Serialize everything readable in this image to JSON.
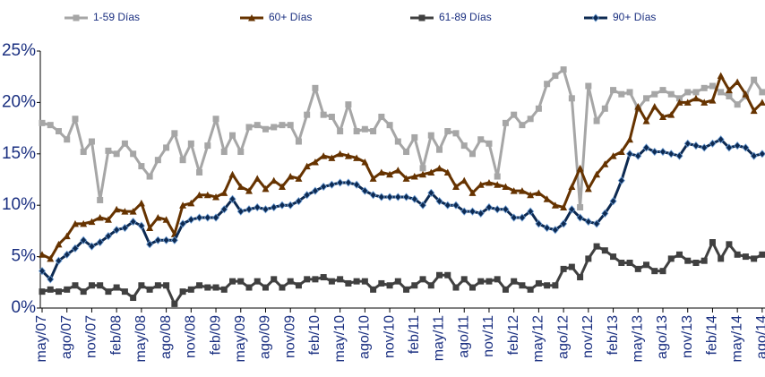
{
  "chart_data": {
    "type": "line",
    "categories": [
      "may/07",
      null,
      null,
      "ago/07",
      null,
      null,
      "nov/07",
      null,
      null,
      "feb/08",
      null,
      null,
      "may/08",
      null,
      null,
      "ago/08",
      null,
      null,
      "nov/08",
      null,
      null,
      "feb/09",
      null,
      null,
      "may/09",
      null,
      null,
      "ago/09",
      null,
      null,
      "nov/09",
      null,
      null,
      "feb/10",
      null,
      null,
      "may/10",
      null,
      null,
      "ago/10",
      null,
      null,
      "nov/10",
      null,
      null,
      "feb/11",
      null,
      null,
      "may/11",
      null,
      null,
      "ago/11",
      null,
      null,
      "nov/11",
      null,
      null,
      "feb/12",
      null,
      null,
      "may/12",
      null,
      null,
      "ago/12",
      null,
      null,
      "nov/12",
      null,
      null,
      "feb/13",
      null,
      null,
      "may/13",
      null,
      null,
      "ago/13",
      null,
      null,
      "nov/13",
      null,
      null,
      "feb/14",
      null,
      null,
      "may/14",
      null,
      null,
      "ago/14"
    ],
    "series": [
      {
        "name": "1-59 Días",
        "color": "#a6a6a6",
        "marker": "square",
        "values": [
          18,
          17.8,
          17.2,
          16.4,
          18.4,
          15.2,
          16.2,
          10.5,
          15.3,
          15,
          16,
          15,
          13.8,
          12.8,
          14.4,
          15.6,
          17,
          14.4,
          16,
          13.2,
          15.8,
          18.4,
          15.2,
          16.8,
          15.2,
          17.6,
          17.8,
          17.4,
          17.6,
          17.8,
          17.8,
          16.2,
          18.8,
          21.4,
          18.8,
          18.6,
          17.2,
          19.8,
          17.2,
          17.4,
          17.2,
          18.6,
          17.8,
          16.2,
          15.2,
          16.6,
          13.6,
          16.8,
          15.4,
          17.2,
          17,
          15.8,
          15,
          16.4,
          16,
          12.8,
          18,
          18.8,
          17.8,
          18.4,
          19.4,
          21.8,
          22.6,
          23.2,
          20.4,
          9.8,
          21.6,
          18.2,
          19.4,
          21.2,
          20.8,
          21,
          19.4,
          20.4,
          20.8,
          21.2,
          20.8,
          20.4,
          21,
          21,
          21.4,
          21.6,
          21,
          20.6,
          19.8,
          20.6,
          22.2,
          21
        ]
      },
      {
        "name": "60+ Días",
        "color": "#663300",
        "marker": "triangle",
        "values": [
          5.2,
          4.8,
          6.2,
          7,
          8.2,
          8.2,
          8.4,
          8.8,
          8.6,
          9.6,
          9.4,
          9.4,
          10.2,
          7.8,
          8.8,
          8.6,
          7.2,
          10,
          10.2,
          11,
          11,
          10.8,
          11.2,
          13,
          11.8,
          11.4,
          12.6,
          11.6,
          12.4,
          11.8,
          12.8,
          12.6,
          13.8,
          14.2,
          14.8,
          14.6,
          15,
          14.8,
          14.6,
          14.2,
          12.6,
          13.2,
          13,
          13.4,
          12.6,
          12.8,
          13,
          13.2,
          13.6,
          13.2,
          11.8,
          12.4,
          11.2,
          12,
          12.2,
          12,
          11.8,
          11.4,
          11.4,
          11,
          11.2,
          10.6,
          10,
          9.8,
          11.8,
          13.6,
          11.6,
          13,
          14,
          14.8,
          15.2,
          16.4,
          19.6,
          18.2,
          19.6,
          18.6,
          18.8,
          20,
          20,
          20.4,
          20,
          20.2,
          22.6,
          21.2,
          22,
          20.8,
          19.2,
          20
        ]
      },
      {
        "name": "61-89 Días",
        "color": "#404040",
        "marker": "square",
        "values": [
          1.6,
          1.8,
          1.6,
          1.8,
          2.2,
          1.6,
          2.2,
          2.2,
          1.6,
          2,
          1.6,
          1,
          2.2,
          1.8,
          2.2,
          2.2,
          0.4,
          1.6,
          1.8,
          2.2,
          2,
          2,
          1.8,
          2.6,
          2.6,
          2,
          2.6,
          2,
          2.8,
          2,
          2.6,
          2.2,
          2.8,
          2.8,
          3,
          2.6,
          2.8,
          2.4,
          2.6,
          2.6,
          1.8,
          2.4,
          2.2,
          2.6,
          1.8,
          2.2,
          2.8,
          2.2,
          3.2,
          3.2,
          2,
          2.8,
          2,
          2.6,
          2.6,
          2.8,
          1.8,
          2.6,
          2.2,
          1.8,
          2.4,
          2.2,
          2.2,
          3.8,
          4,
          3,
          4.8,
          6,
          5.6,
          5,
          4.4,
          4.4,
          3.8,
          4.2,
          3.6,
          3.6,
          4.8,
          5.2,
          4.6,
          4.4,
          4.6,
          6.4,
          4.8,
          6.2,
          5.2,
          5,
          4.8,
          5.2
        ]
      },
      {
        "name": "90+ Días",
        "color": "#0d2a52",
        "marker": "diamond",
        "values": [
          3.6,
          2.8,
          4.6,
          5.2,
          5.8,
          6.6,
          6,
          6.4,
          7,
          7.6,
          7.8,
          8.4,
          8,
          6.2,
          6.6,
          6.6,
          6.6,
          8.2,
          8.6,
          8.8,
          8.8,
          8.8,
          9.6,
          10.6,
          9.4,
          9.6,
          9.8,
          9.6,
          9.8,
          10,
          10,
          10.4,
          11,
          11.4,
          11.8,
          12,
          12.2,
          12.2,
          12,
          11.4,
          11,
          10.8,
          10.8,
          10.8,
          10.8,
          10.6,
          10,
          11.2,
          10.4,
          10,
          10,
          9.4,
          9.4,
          9.2,
          9.8,
          9.6,
          9.6,
          8.8,
          8.8,
          9.4,
          8.2,
          7.8,
          7.6,
          8.2,
          9.6,
          8.8,
          8.4,
          8.2,
          9.2,
          10.4,
          12.4,
          15,
          14.8,
          15.6,
          15.2,
          15.2,
          15,
          14.8,
          16,
          15.8,
          15.6,
          16,
          16.4,
          15.6,
          15.8,
          15.6,
          14.8,
          15
        ]
      }
    ],
    "ylim": [
      0,
      25
    ],
    "yticks": [
      {
        "value": 0,
        "label": "0%"
      },
      {
        "value": 5,
        "label": "5%"
      },
      {
        "value": 10,
        "label": "10%"
      },
      {
        "value": 15,
        "label": "15%"
      },
      {
        "value": 20,
        "label": "20%"
      },
      {
        "value": 25,
        "label": "25%"
      }
    ],
    "legend": "top",
    "grid": false
  }
}
